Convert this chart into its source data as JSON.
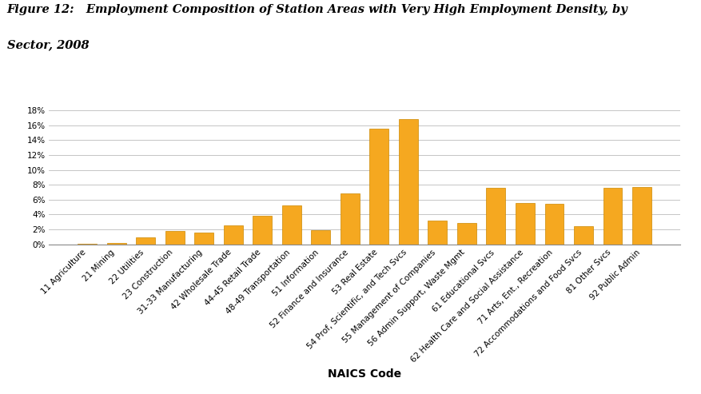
{
  "title_line1": "Figure 12:   Employment Composition of Station Areas with Very High Employment Density, by",
  "title_line2": "Sector, 2008",
  "xlabel": "NAICS Code",
  "categories": [
    "11 Agriculture",
    "21 Mining",
    "22 Utilities",
    "23 Construction",
    "31-33 Manufacturing",
    "42 Wholesale Trade",
    "44-45 Retail Trade",
    "48-49 Transportation",
    "51 Information",
    "52 Finance and Insurance",
    "53 Real Estate",
    "54 Prof, Scientific, and Tech Svcs",
    "55 Management of Companies",
    "56 Admin Support, Waste Mgmt",
    "61 Educational Svcs",
    "62 Health Care and Social Assistance",
    "71 Arts, Ent., Recreation",
    "72 Accommodations and Food Svcs",
    "81 Other Svcs",
    "92 Public Admin"
  ],
  "values": [
    0.05,
    0.2,
    0.9,
    1.8,
    1.6,
    2.5,
    3.8,
    5.2,
    1.85,
    6.8,
    15.5,
    16.8,
    3.15,
    2.9,
    7.55,
    5.5,
    5.4,
    2.4,
    7.55,
    7.7
  ],
  "bar_color": "#F5A820",
  "bar_edge_color": "#CC8800",
  "ylim": [
    0,
    18
  ],
  "yticks": [
    0,
    2,
    4,
    6,
    8,
    10,
    12,
    14,
    16,
    18
  ],
  "grid_color": "#bbbbbb",
  "title_fontsize": 10.5,
  "xlabel_fontsize": 10,
  "tick_fontsize": 7.5
}
